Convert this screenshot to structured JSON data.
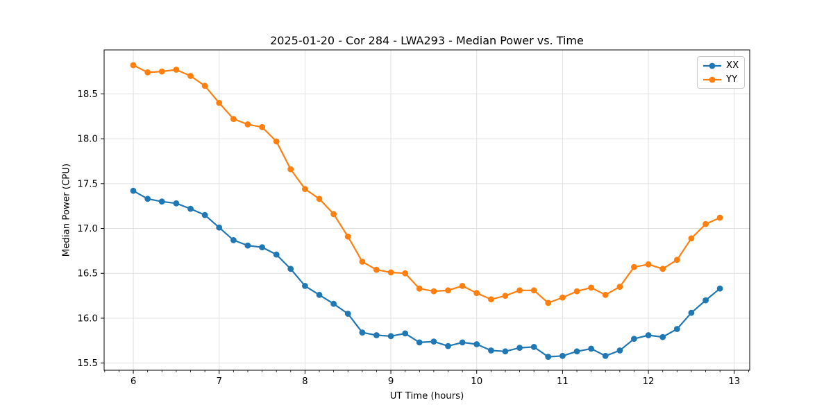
{
  "chart_data": {
    "type": "line",
    "title": "2025-01-20 - Cor 284 - LWA293 - Median Power vs. Time",
    "xlabel": "UT Time (hours)",
    "ylabel": "Median Power (CPU)",
    "xlim": [
      5.66,
      13.18
    ],
    "ylim": [
      15.42,
      18.99
    ],
    "x_ticks": [
      6,
      7,
      8,
      9,
      10,
      11,
      12,
      13
    ],
    "y_ticks": [
      15.5,
      16.0,
      16.5,
      17.0,
      17.5,
      18.0,
      18.5
    ],
    "x_minor_step": 0.16667,
    "grid": true,
    "legend_position": "upper right",
    "marker": "circle",
    "x": [
      6.0,
      6.167,
      6.333,
      6.5,
      6.667,
      6.833,
      7.0,
      7.167,
      7.333,
      7.5,
      7.667,
      7.833,
      8.0,
      8.167,
      8.333,
      8.5,
      8.667,
      8.833,
      9.0,
      9.167,
      9.333,
      9.5,
      9.667,
      9.833,
      10.0,
      10.167,
      10.333,
      10.5,
      10.667,
      10.833,
      11.0,
      11.167,
      11.333,
      11.5,
      11.667,
      11.833,
      12.0,
      12.167,
      12.333,
      12.5,
      12.667,
      12.833
    ],
    "series": [
      {
        "name": "XX",
        "color": "#1f77b4",
        "values": [
          17.42,
          17.33,
          17.3,
          17.28,
          17.22,
          17.15,
          17.01,
          16.87,
          16.81,
          16.79,
          16.71,
          16.55,
          16.36,
          16.26,
          16.16,
          16.05,
          15.84,
          15.81,
          15.8,
          15.83,
          15.73,
          15.74,
          15.69,
          15.73,
          15.71,
          15.64,
          15.63,
          15.67,
          15.68,
          15.57,
          15.58,
          15.63,
          15.66,
          15.58,
          15.64,
          15.77,
          15.81,
          15.79,
          15.88,
          16.06,
          16.2,
          16.33
        ]
      },
      {
        "name": "YY",
        "color": "#ff7f0e",
        "values": [
          18.82,
          18.74,
          18.75,
          18.77,
          18.7,
          18.59,
          18.4,
          18.22,
          18.16,
          18.13,
          17.97,
          17.66,
          17.44,
          17.33,
          17.16,
          16.91,
          16.63,
          16.54,
          16.51,
          16.5,
          16.33,
          16.3,
          16.31,
          16.36,
          16.28,
          16.21,
          16.25,
          16.31,
          16.31,
          16.17,
          16.23,
          16.3,
          16.34,
          16.26,
          16.35,
          16.57,
          16.6,
          16.55,
          16.65,
          16.89,
          17.05,
          17.12
        ]
      }
    ]
  },
  "colors": {
    "background": "#ffffff",
    "grid": "#e0e0e0",
    "spine": "#000000",
    "text": "#000000",
    "legend_border": "#cccccc",
    "series_xx": "#1f77b4",
    "series_yy": "#ff7f0e"
  }
}
